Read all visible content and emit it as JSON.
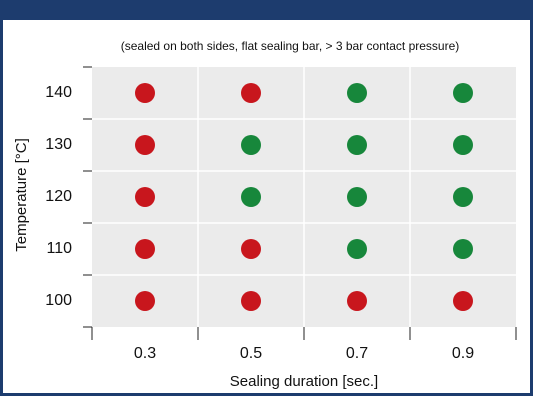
{
  "chart_data": {
    "type": "dot-matrix",
    "subtitle": "(sealed on both sides, flat sealing bar, > 3 bar contact pressure)",
    "x_label": "Sealing duration [sec.]",
    "y_label": "Temperature [°C]",
    "categories": [
      "0.3",
      "0.5",
      "0.7",
      "0.9"
    ],
    "y_categories": [
      "100",
      "110",
      "120",
      "130",
      "140"
    ],
    "colors": [
      [
        "#c8161d",
        "#c8161d",
        "#c8161d",
        "#c8161d"
      ],
      [
        "#c8161d",
        "#c8161d",
        "#17873b",
        "#17873b"
      ],
      [
        "#c8161d",
        "#17873b",
        "#17873b",
        "#17873b"
      ],
      [
        "#c8161d",
        "#17873b",
        "#17873b",
        "#17873b"
      ],
      [
        "#c8161d",
        "#c8161d",
        "#17873b",
        "#17873b"
      ]
    ],
    "grid": true
  }
}
